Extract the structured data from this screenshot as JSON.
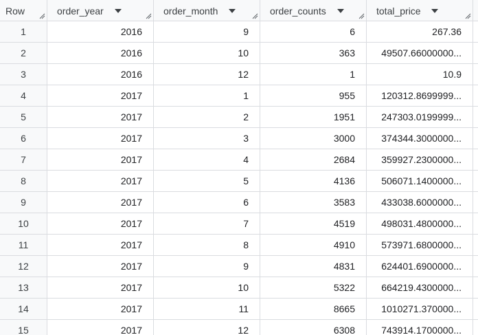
{
  "columns": {
    "row": "Row",
    "order_year": "order_year",
    "order_month": "order_month",
    "order_counts": "order_counts",
    "total_price": "total_price"
  },
  "rows": [
    {
      "row": "1",
      "year": "2016",
      "month": "9",
      "counts": "6",
      "price": "267.36"
    },
    {
      "row": "2",
      "year": "2016",
      "month": "10",
      "counts": "363",
      "price": "49507.66000000..."
    },
    {
      "row": "3",
      "year": "2016",
      "month": "12",
      "counts": "1",
      "price": "10.9"
    },
    {
      "row": "4",
      "year": "2017",
      "month": "1",
      "counts": "955",
      "price": "120312.8699999..."
    },
    {
      "row": "5",
      "year": "2017",
      "month": "2",
      "counts": "1951",
      "price": "247303.0199999..."
    },
    {
      "row": "6",
      "year": "2017",
      "month": "3",
      "counts": "3000",
      "price": "374344.3000000..."
    },
    {
      "row": "7",
      "year": "2017",
      "month": "4",
      "counts": "2684",
      "price": "359927.2300000..."
    },
    {
      "row": "8",
      "year": "2017",
      "month": "5",
      "counts": "4136",
      "price": "506071.1400000..."
    },
    {
      "row": "9",
      "year": "2017",
      "month": "6",
      "counts": "3583",
      "price": "433038.6000000..."
    },
    {
      "row": "10",
      "year": "2017",
      "month": "7",
      "counts": "4519",
      "price": "498031.4800000..."
    },
    {
      "row": "11",
      "year": "2017",
      "month": "8",
      "counts": "4910",
      "price": "573971.6800000..."
    },
    {
      "row": "12",
      "year": "2017",
      "month": "9",
      "counts": "4831",
      "price": "624401.6900000..."
    },
    {
      "row": "13",
      "year": "2017",
      "month": "10",
      "counts": "5322",
      "price": "664219.4300000..."
    },
    {
      "row": "14",
      "year": "2017",
      "month": "11",
      "counts": "8665",
      "price": "1010271.370000..."
    },
    {
      "row": "15",
      "year": "2017",
      "month": "12",
      "counts": "6308",
      "price": "743914.1700000..."
    }
  ],
  "icons": {
    "sort": "chevron-down-icon",
    "resize": "column-resize-icon"
  }
}
